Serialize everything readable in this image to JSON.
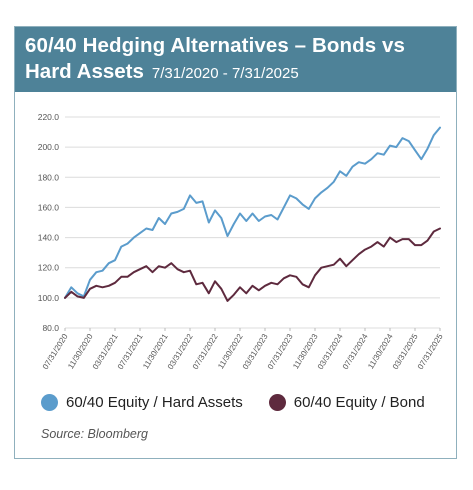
{
  "header": {
    "title_line1": "60/40 Hedging Alternatives – Bonds vs",
    "title_line2": "Hard Assets",
    "date_range": "7/31/2020 - 7/31/2025"
  },
  "colors": {
    "header_bg": "#4e8298",
    "hard_assets": "#5b9ccc",
    "bond": "#5e2a3e"
  },
  "source": "Source: Bloomberg",
  "chart_data": {
    "type": "line",
    "title": "60/40 Hedging Alternatives – Bonds vs Hard Assets",
    "ylim": [
      80,
      220
    ],
    "yticks": [
      "80.0",
      "100.0",
      "120.0",
      "140.0",
      "160.0",
      "180.0",
      "200.0",
      "220.0"
    ],
    "xtick_labels": [
      "07/31/2020",
      "11/30/2020",
      "03/31/2021",
      "07/31/2021",
      "11/30/2021",
      "03/31/2022",
      "07/31/2022",
      "11/30/2022",
      "03/31/2023",
      "07/31/2023",
      "11/30/2023",
      "03/31/2024",
      "07/31/2024",
      "11/30/2024",
      "03/31/2025",
      "07/31/2025"
    ],
    "grid": true,
    "legend_position": "bottom",
    "x": [
      "2020-07",
      "2020-08",
      "2020-09",
      "2020-10",
      "2020-11",
      "2020-12",
      "2021-01",
      "2021-02",
      "2021-03",
      "2021-04",
      "2021-05",
      "2021-06",
      "2021-07",
      "2021-08",
      "2021-09",
      "2021-10",
      "2021-11",
      "2021-12",
      "2022-01",
      "2022-02",
      "2022-03",
      "2022-04",
      "2022-05",
      "2022-06",
      "2022-07",
      "2022-08",
      "2022-09",
      "2022-10",
      "2022-11",
      "2022-12",
      "2023-01",
      "2023-02",
      "2023-03",
      "2023-04",
      "2023-05",
      "2023-06",
      "2023-07",
      "2023-08",
      "2023-09",
      "2023-10",
      "2023-11",
      "2023-12",
      "2024-01",
      "2024-02",
      "2024-03",
      "2024-04",
      "2024-05",
      "2024-06",
      "2024-07",
      "2024-08",
      "2024-09",
      "2024-10",
      "2024-11",
      "2024-12",
      "2025-01",
      "2025-02",
      "2025-03",
      "2025-04",
      "2025-05",
      "2025-06",
      "2025-07"
    ],
    "series": [
      {
        "name": "60/40 Equity / Hard Assets",
        "values": [
          100,
          107,
          103,
          101,
          112,
          117,
          118,
          123,
          125,
          134,
          136,
          140,
          143,
          146,
          145,
          153,
          149,
          156,
          157,
          159,
          168,
          163,
          164,
          150,
          158,
          153,
          141,
          149,
          156,
          151,
          156,
          151,
          154,
          155,
          152,
          160,
          168,
          166,
          162,
          159,
          166,
          170,
          173,
          177,
          184,
          181,
          187,
          190,
          189,
          192,
          196,
          195,
          201,
          200,
          206,
          204,
          198,
          192,
          199,
          208,
          213
        ]
      },
      {
        "name": "60/40 Equity / Bond",
        "values": [
          100,
          104,
          101,
          100,
          106,
          108,
          107,
          108,
          110,
          114,
          114,
          117,
          119,
          121,
          117,
          121,
          120,
          123,
          119,
          117,
          118,
          109,
          110,
          103,
          111,
          106,
          98,
          102,
          107,
          103,
          108,
          105,
          108,
          110,
          109,
          113,
          115,
          114,
          109,
          107,
          115,
          120,
          121,
          122,
          126,
          121,
          125,
          129,
          132,
          134,
          137,
          134,
          140,
          137,
          139,
          139,
          135,
          135,
          138,
          144,
          146
        ]
      }
    ]
  }
}
